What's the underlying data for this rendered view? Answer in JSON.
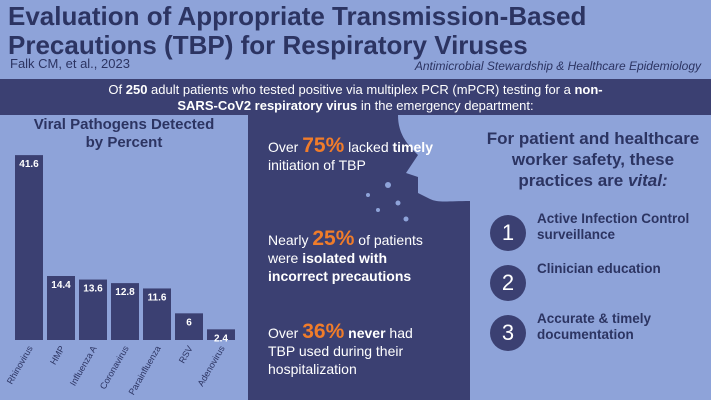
{
  "header": {
    "title": "Evaluation of Appropriate Transmission-Based Precautions (TBP) for Respiratory Viruses",
    "citation": "Falk CM, et al., 2023",
    "journal": "Antimicrobial Stewardship & Healthcare Epidemiology"
  },
  "intro": [
    {
      "text": "Of "
    },
    {
      "text": "250",
      "bold": true
    },
    {
      "text": " adult patients who tested positive via multiplex PCR (mPCR) testing for a "
    },
    {
      "text": "non-SARS-CoV2 respiratory virus",
      "bold": true
    },
    {
      "text": " in the emergency department:"
    }
  ],
  "chart_data": {
    "type": "bar",
    "title": "Viral Pathogens Detected by Percent",
    "categories": [
      "Rhinovirus",
      "HMP",
      "Influenza A",
      "Coronavirus",
      "Parainfluenza",
      "RSV",
      "Adenovirus"
    ],
    "values": [
      41.6,
      14.4,
      13.6,
      12.8,
      11.6,
      6,
      2.4
    ],
    "color": "#3b4072",
    "ylim": [
      0,
      45
    ]
  },
  "stats": [
    [
      {
        "text": "Over "
      },
      {
        "text": "75%",
        "highlight": true
      },
      {
        "text": " lacked "
      },
      {
        "text": "timely",
        "bold": true
      },
      {
        "text": " initiation of TBP"
      }
    ],
    [
      {
        "text": "Nearly "
      },
      {
        "text": "25%",
        "highlight": true
      },
      {
        "text": " of patients were "
      },
      {
        "text": "isolated with incorrect precautions",
        "bold": true
      }
    ],
    [
      {
        "text": "Over "
      },
      {
        "text": "36%",
        "highlight": true
      },
      {
        "text": " "
      },
      {
        "text": "never",
        "bold": true
      },
      {
        "text": " had TBP used during their hospitalization"
      }
    ]
  ],
  "practices": {
    "title": [
      {
        "text": "For patient and healthcare worker safety, these practices are "
      },
      {
        "text": "vital:",
        "italic": true
      }
    ],
    "items": [
      {
        "number": "1",
        "text": "Active Infection Control surveillance"
      },
      {
        "number": "2",
        "text": "Clinician education"
      },
      {
        "number": "3",
        "text": "Accurate & timely documentation"
      }
    ]
  }
}
